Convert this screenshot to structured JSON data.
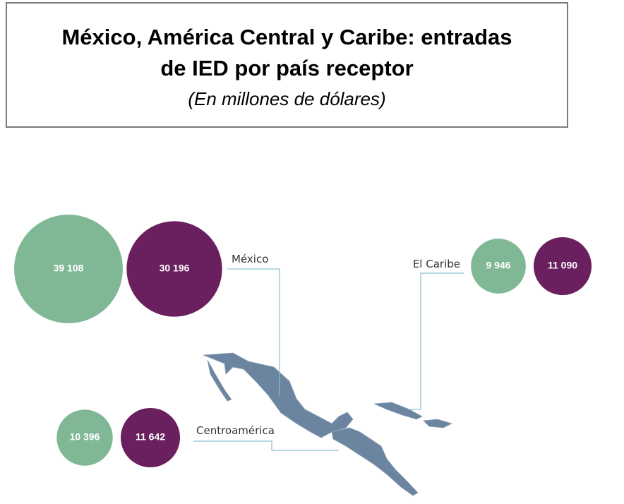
{
  "chart_data": {
    "type": "bubble",
    "title": "México, América Central y Caribe: entradas de IED por país receptor",
    "subtitle": "(En millones de dólares)",
    "categories": [
      "México",
      "Centroamérica",
      "El Caribe"
    ],
    "series": [
      {
        "color": "#80b896",
        "values": [
          39108,
          10396,
          9946
        ],
        "value_labels": [
          "39 108",
          "10 396",
          "9 946"
        ]
      },
      {
        "color": "#6a1f5e",
        "values": [
          30196,
          11642,
          11090
        ],
        "value_labels": [
          "30 196",
          "11 642",
          "11 090"
        ]
      }
    ]
  }
}
